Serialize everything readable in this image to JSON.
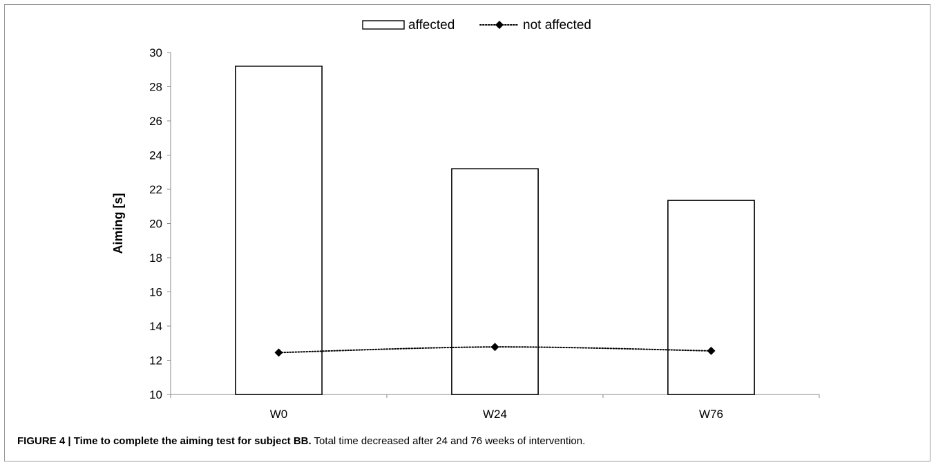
{
  "chart_data": {
    "type": "bar",
    "categories": [
      "W0",
      "W24",
      "W76"
    ],
    "series": [
      {
        "name": "affected",
        "kind": "bar",
        "values": [
          29.2,
          23.2,
          21.35
        ]
      },
      {
        "name": "not affected",
        "kind": "line",
        "values": [
          12.45,
          12.78,
          12.55
        ]
      }
    ],
    "ylabel": "Aiming [s]",
    "xlabel": "",
    "ylim": [
      10,
      30
    ],
    "yticks": [
      10,
      12,
      14,
      16,
      18,
      20,
      22,
      24,
      26,
      28,
      30
    ],
    "legend": "top-center",
    "grid": false,
    "colors": {
      "bar_fill": "#ffffff",
      "bar_stroke": "#000000",
      "line": "#000000"
    }
  },
  "caption": {
    "figure_label": "FIGURE 4 | Time to complete the aiming test for subject BB.",
    "text": " Total time decreased after 24 and 76 weeks of intervention."
  }
}
